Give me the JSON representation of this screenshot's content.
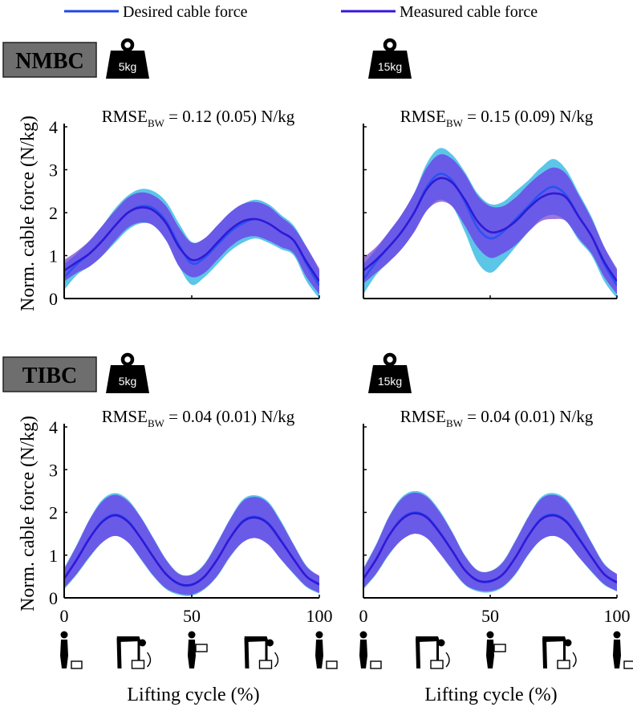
{
  "legend": [
    {
      "label": "Desired cable force",
      "color": "#1f47e6"
    },
    {
      "label": "Measured cable force",
      "color": "#3a14d9"
    }
  ],
  "colors": {
    "desired_band": "#5bc6e8",
    "measured_band": "#9b77dc",
    "overlap_band": "#6a5ae8",
    "desired_line": "#2a52f0",
    "measured_line": "#2e1ad6",
    "tag_box": "#6e6e6e"
  },
  "sections": [
    {
      "tag": "NMBC",
      "weights": [
        "5kg",
        "15kg"
      ]
    },
    {
      "tag": "TIBC",
      "weights": [
        "5kg",
        "15kg"
      ]
    }
  ],
  "axes": {
    "ylabel": "Norm. cable force (N/kg)",
    "xlabel": "Lifting cycle (%)",
    "yticks": [
      "0",
      "1",
      "2",
      "3",
      "4"
    ],
    "xticks": [
      "0",
      "50",
      "100"
    ]
  },
  "phase_icons": [
    "standing-with-box-icon",
    "bending-lift-icon",
    "standing-holding-box-icon",
    "bending-lower-icon",
    "standing-with-box-icon"
  ],
  "chart_data": [
    {
      "type": "line",
      "title": "NMBC 5kg",
      "annotation": {
        "main": "RMSE",
        "sub": "BW",
        "rest": " = 0.12 (0.05) N/kg"
      },
      "xlim": [
        0,
        100
      ],
      "ylim": [
        0,
        4
      ],
      "x": [
        0,
        5,
        10,
        15,
        20,
        25,
        30,
        35,
        40,
        45,
        50,
        55,
        60,
        65,
        70,
        75,
        80,
        85,
        90,
        95,
        100
      ],
      "series": [
        {
          "name": "Desired cable force",
          "mean": [
            0.5,
            0.8,
            1.05,
            1.35,
            1.7,
            2.0,
            2.15,
            2.1,
            1.8,
            1.25,
            0.82,
            0.95,
            1.25,
            1.55,
            1.75,
            1.85,
            1.75,
            1.55,
            1.35,
            0.8,
            0.3
          ],
          "sd": [
            0.3,
            0.25,
            0.3,
            0.35,
            0.4,
            0.4,
            0.4,
            0.4,
            0.45,
            0.5,
            0.5,
            0.45,
            0.45,
            0.45,
            0.45,
            0.45,
            0.45,
            0.4,
            0.35,
            0.4,
            0.35
          ]
        },
        {
          "name": "Measured cable force",
          "mean": [
            0.65,
            0.85,
            1.05,
            1.35,
            1.7,
            2.0,
            2.12,
            2.05,
            1.75,
            1.2,
            0.9,
            1.0,
            1.3,
            1.6,
            1.8,
            1.85,
            1.75,
            1.55,
            1.35,
            0.85,
            0.4
          ],
          "sd": [
            0.25,
            0.25,
            0.3,
            0.35,
            0.35,
            0.35,
            0.35,
            0.35,
            0.4,
            0.45,
            0.4,
            0.4,
            0.4,
            0.4,
            0.4,
            0.4,
            0.4,
            0.35,
            0.3,
            0.35,
            0.3
          ]
        }
      ]
    },
    {
      "type": "line",
      "title": "NMBC 15kg",
      "annotation": {
        "main": "RMSE",
        "sub": "BW",
        "rest": " = 0.15 (0.09) N/kg"
      },
      "xlim": [
        0,
        100
      ],
      "ylim": [
        0,
        4
      ],
      "x": [
        0,
        5,
        10,
        15,
        20,
        25,
        30,
        35,
        40,
        45,
        50,
        55,
        60,
        65,
        70,
        75,
        80,
        85,
        90,
        95,
        100
      ],
      "series": [
        {
          "name": "Desired cable force",
          "mean": [
            0.45,
            0.85,
            1.2,
            1.55,
            2.0,
            2.6,
            2.9,
            2.75,
            2.25,
            1.65,
            1.4,
            1.55,
            1.85,
            2.15,
            2.45,
            2.6,
            2.4,
            1.9,
            1.45,
            0.8,
            0.3
          ],
          "sd": [
            0.35,
            0.3,
            0.35,
            0.4,
            0.45,
            0.55,
            0.6,
            0.6,
            0.7,
            0.8,
            0.8,
            0.7,
            0.65,
            0.6,
            0.6,
            0.65,
            0.6,
            0.55,
            0.45,
            0.4,
            0.35
          ]
        },
        {
          "name": "Measured cable force",
          "mean": [
            0.65,
            0.9,
            1.2,
            1.55,
            2.0,
            2.55,
            2.8,
            2.7,
            2.3,
            1.8,
            1.55,
            1.6,
            1.8,
            2.1,
            2.35,
            2.45,
            2.35,
            1.9,
            1.45,
            0.85,
            0.4
          ],
          "sd": [
            0.3,
            0.3,
            0.35,
            0.4,
            0.45,
            0.5,
            0.55,
            0.55,
            0.6,
            0.6,
            0.6,
            0.55,
            0.55,
            0.55,
            0.55,
            0.6,
            0.55,
            0.5,
            0.4,
            0.35,
            0.3
          ]
        }
      ]
    },
    {
      "type": "line",
      "title": "TIBC 5kg",
      "annotation": {
        "main": "RMSE",
        "sub": "BW",
        "rest": " = 0.04 (0.01) N/kg"
      },
      "xlim": [
        0,
        100
      ],
      "ylim": [
        0,
        4
      ],
      "x": [
        0,
        5,
        10,
        15,
        20,
        25,
        30,
        35,
        40,
        45,
        50,
        55,
        60,
        65,
        70,
        75,
        80,
        85,
        90,
        95,
        100
      ],
      "series": [
        {
          "name": "Desired cable force",
          "mean": [
            0.45,
            0.9,
            1.4,
            1.8,
            1.95,
            1.8,
            1.4,
            0.95,
            0.55,
            0.32,
            0.3,
            0.5,
            0.9,
            1.4,
            1.8,
            1.9,
            1.75,
            1.35,
            0.9,
            0.5,
            0.3
          ],
          "sd": [
            0.25,
            0.35,
            0.45,
            0.5,
            0.5,
            0.5,
            0.5,
            0.45,
            0.35,
            0.25,
            0.25,
            0.3,
            0.4,
            0.45,
            0.5,
            0.5,
            0.5,
            0.45,
            0.35,
            0.25,
            0.2
          ]
        },
        {
          "name": "Measured cable force",
          "mean": [
            0.45,
            0.9,
            1.4,
            1.78,
            1.93,
            1.78,
            1.4,
            0.95,
            0.55,
            0.33,
            0.31,
            0.5,
            0.9,
            1.4,
            1.78,
            1.88,
            1.73,
            1.33,
            0.9,
            0.5,
            0.32
          ],
          "sd": [
            0.22,
            0.33,
            0.43,
            0.48,
            0.48,
            0.48,
            0.48,
            0.43,
            0.33,
            0.23,
            0.23,
            0.28,
            0.38,
            0.43,
            0.48,
            0.48,
            0.48,
            0.43,
            0.33,
            0.23,
            0.2
          ]
        }
      ]
    },
    {
      "type": "line",
      "title": "TIBC 15kg",
      "annotation": {
        "main": "RMSE",
        "sub": "BW",
        "rest": " = 0.04 (0.01) N/kg"
      },
      "xlim": [
        0,
        100
      ],
      "ylim": [
        0,
        4
      ],
      "x": [
        0,
        5,
        10,
        15,
        20,
        25,
        30,
        35,
        40,
        45,
        50,
        55,
        60,
        65,
        70,
        75,
        80,
        85,
        90,
        95,
        100
      ],
      "series": [
        {
          "name": "Desired cable force",
          "mean": [
            0.45,
            0.9,
            1.45,
            1.85,
            2.0,
            1.9,
            1.55,
            1.1,
            0.65,
            0.4,
            0.38,
            0.55,
            0.95,
            1.45,
            1.85,
            1.95,
            1.8,
            1.4,
            0.95,
            0.55,
            0.35
          ],
          "sd": [
            0.25,
            0.35,
            0.45,
            0.5,
            0.5,
            0.5,
            0.5,
            0.45,
            0.35,
            0.25,
            0.25,
            0.3,
            0.4,
            0.45,
            0.5,
            0.5,
            0.5,
            0.45,
            0.35,
            0.25,
            0.2
          ]
        },
        {
          "name": "Measured cable force",
          "mean": [
            0.45,
            0.9,
            1.45,
            1.83,
            1.98,
            1.88,
            1.53,
            1.1,
            0.65,
            0.41,
            0.39,
            0.55,
            0.95,
            1.45,
            1.83,
            1.93,
            1.78,
            1.38,
            0.95,
            0.55,
            0.36
          ],
          "sd": [
            0.22,
            0.33,
            0.43,
            0.48,
            0.48,
            0.48,
            0.48,
            0.43,
            0.33,
            0.23,
            0.23,
            0.28,
            0.38,
            0.43,
            0.48,
            0.48,
            0.48,
            0.43,
            0.33,
            0.23,
            0.2
          ]
        }
      ]
    }
  ]
}
